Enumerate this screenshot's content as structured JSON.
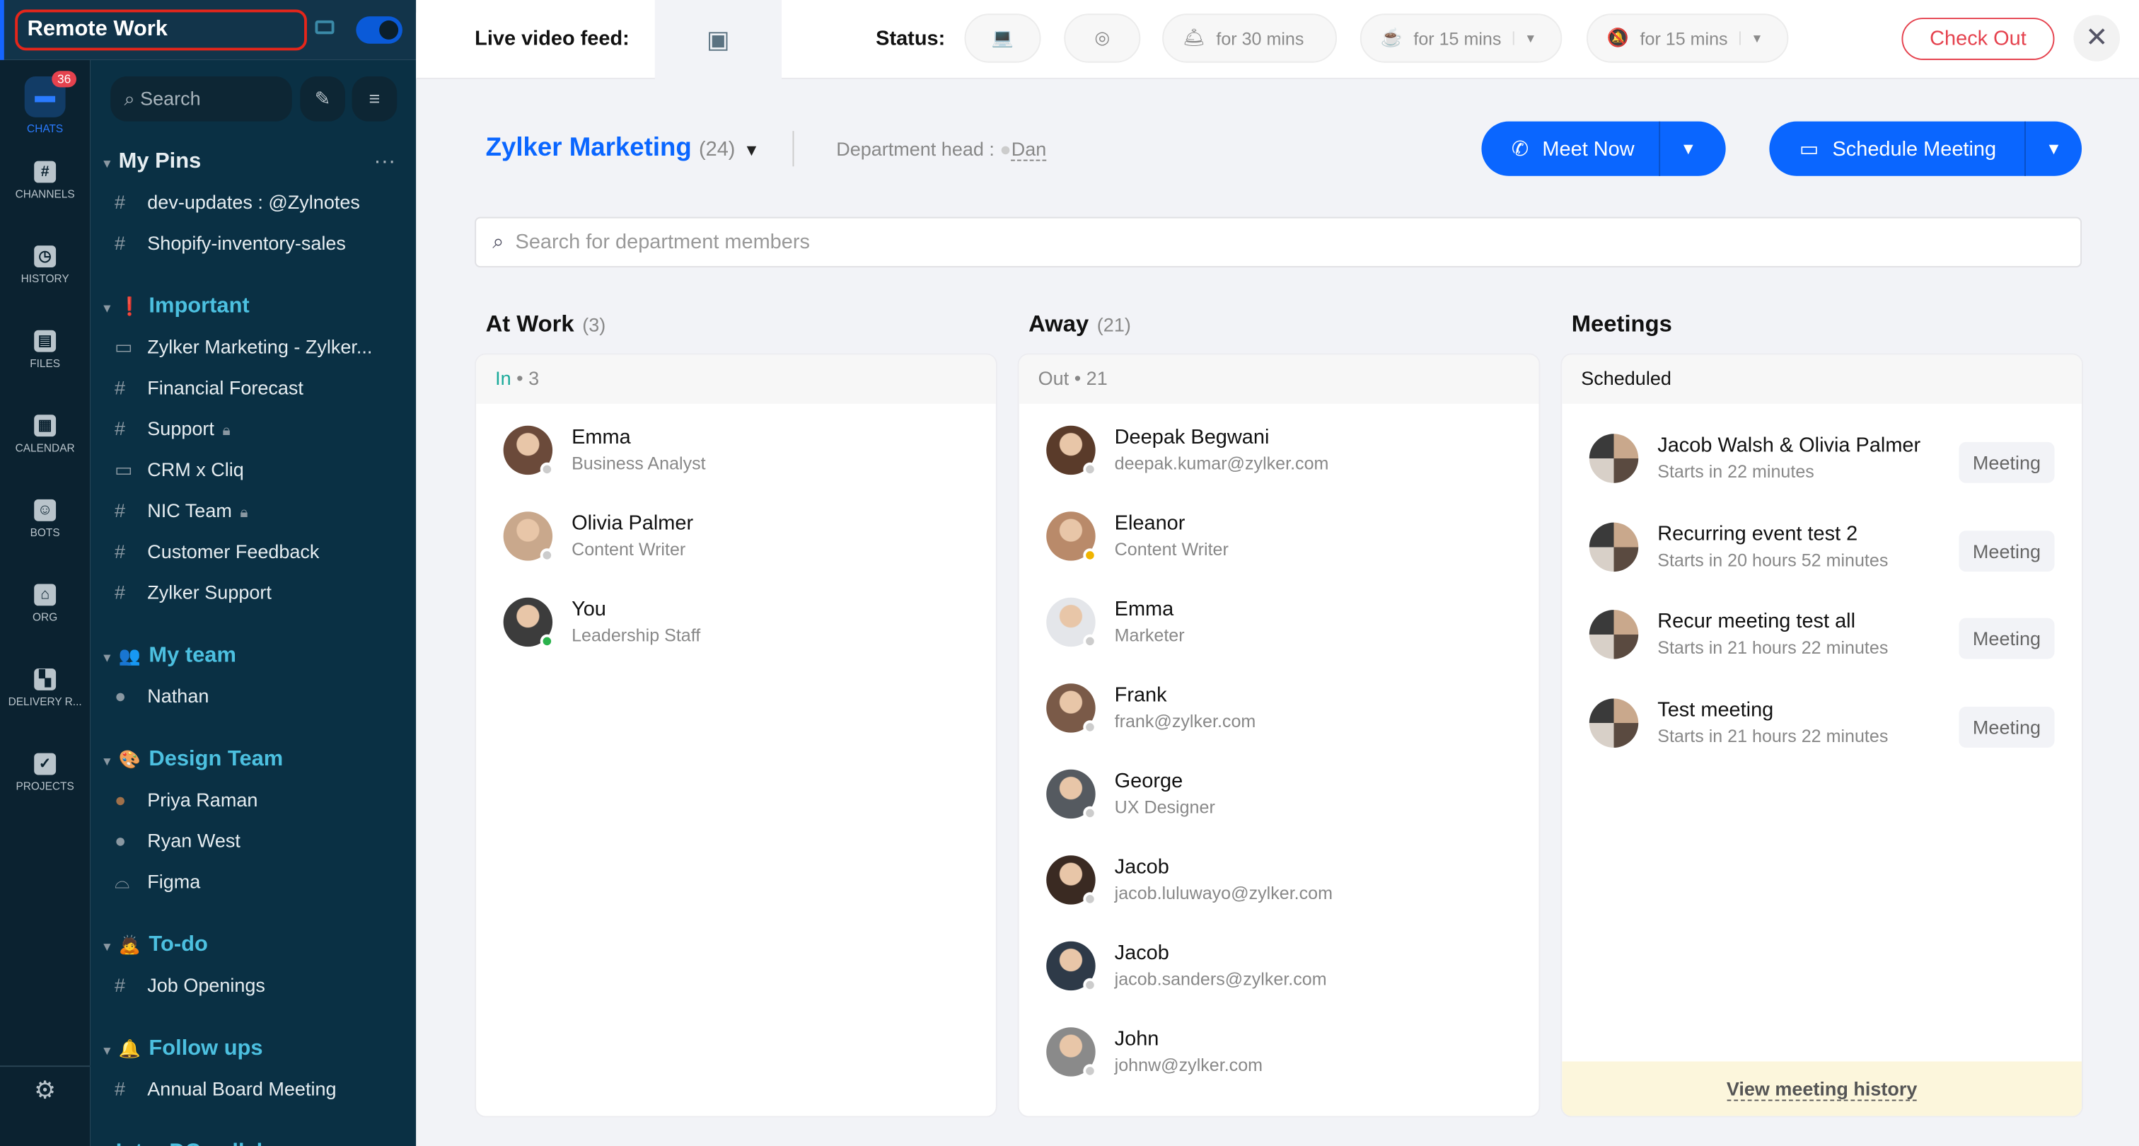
{
  "workspace": {
    "name": "Remote Work",
    "toggle_on": true
  },
  "rail": {
    "items": [
      {
        "label": "CHATS",
        "icon": "chat-icon",
        "glyph": "▬",
        "badge": "36",
        "active": true
      },
      {
        "label": "CHANNELS",
        "icon": "hash-icon",
        "glyph": "#"
      },
      {
        "label": "HISTORY",
        "icon": "history-icon",
        "glyph": "◷"
      },
      {
        "label": "FILES",
        "icon": "file-icon",
        "glyph": "▤"
      },
      {
        "label": "CALENDAR",
        "icon": "calendar-icon",
        "glyph": "▦"
      },
      {
        "label": "BOTS",
        "icon": "bot-icon",
        "glyph": "☺"
      },
      {
        "label": "ORG",
        "icon": "org-icon",
        "glyph": "⌂"
      },
      {
        "label": "DELIVERY R...",
        "icon": "grid-icon",
        "glyph": "▚"
      },
      {
        "label": "PROJECTS",
        "icon": "check-icon",
        "glyph": "✓"
      }
    ],
    "settings_icon": "gear-icon"
  },
  "sidebar": {
    "search_placeholder": "Search",
    "sections": [
      {
        "title": "My Pins",
        "emoji": "",
        "items": [
          {
            "pre": "#",
            "label": "dev-updates : @Zylnotes"
          },
          {
            "pre": "#",
            "label": "Shopify-inventory-sales"
          }
        ]
      },
      {
        "title": "Important",
        "emoji": "❗",
        "items": [
          {
            "pre": "▭",
            "label": "Zylker Marketing - Zylker..."
          },
          {
            "pre": "#",
            "label": "Financial Forecast"
          },
          {
            "pre": "#",
            "label": "Support",
            "lock": true
          },
          {
            "pre": "▭",
            "label": "CRM x Cliq"
          },
          {
            "pre": "#",
            "label": "NIC Team",
            "lock": true
          },
          {
            "pre": "#",
            "label": "Customer Feedback"
          },
          {
            "pre": "#",
            "label": "Zylker Support"
          }
        ]
      },
      {
        "title": "My team",
        "emoji": "👥",
        "items": [
          {
            "pre": "●",
            "label": "Nathan"
          }
        ]
      },
      {
        "title": "Design Team",
        "emoji": "🎨",
        "items": [
          {
            "pre": "●",
            "label": "Priya Raman",
            "dot": "#a0704a"
          },
          {
            "pre": "●",
            "label": "Ryan West"
          },
          {
            "pre": "⌓",
            "label": "Figma"
          }
        ]
      },
      {
        "title": "To-do",
        "emoji": "🙇",
        "items": [
          {
            "pre": "#",
            "label": "Job Openings"
          }
        ]
      },
      {
        "title": "Follow ups",
        "emoji": "🔔",
        "items": [
          {
            "pre": "#",
            "label": "Annual Board Meeting"
          }
        ]
      },
      {
        "title": "Inter DC collab",
        "emoji": "",
        "collapsed": true,
        "items": []
      }
    ]
  },
  "topbar": {
    "live_video_label": "Live video feed:",
    "status_label": "Status:",
    "statuses": [
      {
        "icon": "laptop-icon",
        "glyph": "💻"
      },
      {
        "icon": "target-icon",
        "glyph": "◎"
      },
      {
        "icon": "bell-icon",
        "glyph": "🛎",
        "text": "for 30 mins"
      },
      {
        "icon": "coffee-icon",
        "glyph": "☕",
        "text": "for 15 mins",
        "dropdown": true
      },
      {
        "icon": "mute-icon",
        "glyph": "🔕",
        "text": "for 15 mins",
        "dropdown": true
      }
    ],
    "check_out": "Check Out"
  },
  "department": {
    "name": "Zylker Marketing",
    "count": "(24)",
    "head_label": "Department head :",
    "head": "Dan",
    "search_placeholder": "Search for department members",
    "meet_now": "Meet Now",
    "schedule": "Schedule Meeting"
  },
  "at_work": {
    "title": "At Work",
    "count": "(3)",
    "sub_label": "In",
    "sub_count": "3",
    "people": [
      {
        "name": "Emma",
        "sub": "Business Analyst",
        "status": "#cccccc",
        "color": "#6b4a3a"
      },
      {
        "name": "Olivia Palmer",
        "sub": "Content Writer",
        "status": "#cccccc",
        "color": "#c9a88c"
      },
      {
        "name": "You",
        "sub": "Leadership Staff",
        "status": "#2bb24c",
        "color": "#3c3c3c"
      }
    ]
  },
  "away": {
    "title": "Away",
    "count": "(21)",
    "sub_label": "Out",
    "sub_count": "21",
    "people": [
      {
        "name": "Deepak Begwani",
        "sub": "deepak.kumar@zylker.com",
        "status": "#cccccc",
        "color": "#5a3b2a"
      },
      {
        "name": "Eleanor",
        "sub": "Content Writer",
        "status": "#f0b400",
        "color": "#b98a6a"
      },
      {
        "name": "Emma",
        "sub": "Marketer",
        "status": "#cccccc",
        "color": "#e4e6ea"
      },
      {
        "name": "Frank",
        "sub": "frank@zylker.com",
        "status": "#cccccc",
        "color": "#7a5a48"
      },
      {
        "name": "George",
        "sub": "UX Designer",
        "status": "#cccccc",
        "color": "#555a60"
      },
      {
        "name": "Jacob",
        "sub": "jacob.luluwayo@zylker.com",
        "status": "#cccccc",
        "color": "#3a2a22"
      },
      {
        "name": "Jacob",
        "sub": "jacob.sanders@zylker.com",
        "status": "#cccccc",
        "color": "#2e3a48"
      },
      {
        "name": "John",
        "sub": "johnw@zylker.com",
        "status": "#cccccc",
        "color": "#8a8a8a"
      }
    ]
  },
  "meetings": {
    "title": "Meetings",
    "sub_label": "Scheduled",
    "view_history": "View meeting history",
    "items": [
      {
        "title": "Jacob Walsh & Olivia Palmer",
        "time": "Starts in 22 minutes",
        "tag": "Meeting"
      },
      {
        "title": "Recurring event test 2",
        "time": "Starts in 20 hours 52 minutes",
        "tag": "Meeting"
      },
      {
        "title": "Recur meeting test all",
        "time": "Starts in 21 hours 22 minutes",
        "tag": "Meeting"
      },
      {
        "title": "Test meeting",
        "time": "Starts in 21 hours 22 minutes",
        "tag": "Meeting"
      }
    ]
  },
  "colors": {
    "accent": "#0a66ff",
    "danger": "#e5424e",
    "sidebar": "#0a3044",
    "section": "#4cc0e0"
  }
}
